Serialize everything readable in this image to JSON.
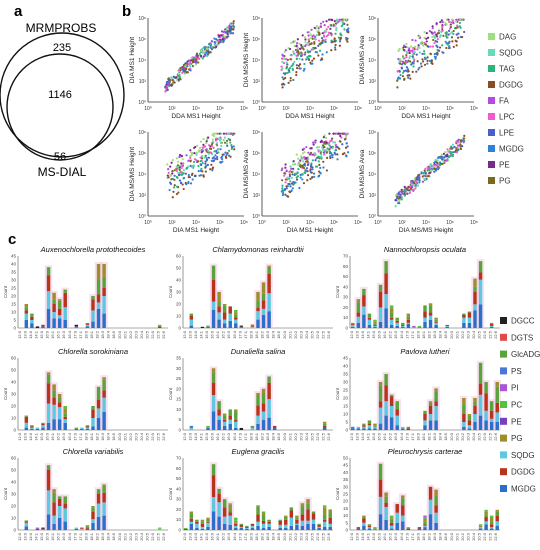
{
  "panel_labels": [
    "a",
    "b",
    "c"
  ],
  "venn": {
    "top_label": "MRMPROBS",
    "bottom_label": "MS-DIAL",
    "only_top": "235",
    "overlap": "1146",
    "only_bottom": "56"
  },
  "legend_b": [
    {
      "name": "DAG",
      "color": "#9ee07b"
    },
    {
      "name": "SQDG",
      "color": "#66d9b8"
    },
    {
      "name": "TAG",
      "color": "#2bb57a"
    },
    {
      "name": "DGDG",
      "color": "#8a4c24"
    },
    {
      "name": "FA",
      "color": "#b54adf"
    },
    {
      "name": "LPC",
      "color": "#f25bd0"
    },
    {
      "name": "LPE",
      "color": "#4b5fc9"
    },
    {
      "name": "MGDG",
      "color": "#2f80d8"
    },
    {
      "name": "PE",
      "color": "#7a2a8a"
    },
    {
      "name": "PG",
      "color": "#7a6a1c"
    }
  ],
  "legend_c": [
    {
      "name": "DGCC",
      "color": "#222222"
    },
    {
      "name": "DGTS",
      "color": "#e04a4a"
    },
    {
      "name": "GlcADG",
      "color": "#5aa33b"
    },
    {
      "name": "PS",
      "color": "#4a76d6"
    },
    {
      "name": "PI",
      "color": "#a855d6"
    },
    {
      "name": "PC",
      "color": "#58c23c"
    },
    {
      "name": "PE",
      "color": "#7a3cc0"
    },
    {
      "name": "PG",
      "color": "#9c8e2a"
    },
    {
      "name": "SQDG",
      "color": "#5ec8e0"
    },
    {
      "name": "DGDG",
      "color": "#b8331c"
    },
    {
      "name": "MGDG",
      "color": "#2a6fc9"
    }
  ],
  "chart_data": [
    {
      "type": "scatter",
      "panel": "b",
      "log_scale": true,
      "plots": [
        {
          "xlabel": "DDA MS1 Height",
          "ylabel": "DIA MS1 Height",
          "trend": "diag"
        },
        {
          "xlabel": "DDA MS1 Height",
          "ylabel": "DIA MS/MS Height",
          "trend": "bands"
        },
        {
          "xlabel": "DDA MS1 Height",
          "ylabel": "DIA MS/MS Area",
          "trend": "bands"
        },
        {
          "xlabel": "DIA MS1 Height",
          "ylabel": "DIA MS/MS Height",
          "trend": "bands"
        },
        {
          "xlabel": "DIA MS1 Height",
          "ylabel": "DIA MS/MS Area",
          "trend": "bands"
        },
        {
          "xlabel": "DIA MS/MS Height",
          "ylabel": "DIA MS/MS Area",
          "trend": "diag"
        }
      ]
    },
    {
      "type": "bar",
      "panel": "c",
      "stacked": true,
      "ylabel": "Count",
      "categories": [
        "12:0",
        "13:0",
        "14:0",
        "14:1",
        "15:0",
        "16:0",
        "16:1",
        "16:2",
        "16:3",
        "16:4",
        "17:0",
        "17:1",
        "18:0",
        "18:1",
        "18:2",
        "18:3",
        "18:4",
        "18:5",
        "20:0",
        "20:1",
        "20:2",
        "20:3",
        "20:4",
        "20:5",
        "22:0",
        "22:5",
        "22:6"
      ],
      "panels": [
        {
          "title": "Auxenochlorella protothecoides",
          "ylim": [
            0,
            45
          ],
          "yticks": [
            0,
            5,
            10,
            15,
            20,
            25,
            30,
            35,
            40,
            45
          ],
          "values": [
            0,
            15,
            9,
            1,
            2,
            38,
            22,
            18,
            24,
            0,
            2,
            0,
            3,
            20,
            40,
            40,
            0,
            0,
            0,
            0,
            0,
            0,
            0,
            0,
            0,
            2,
            0
          ]
        },
        {
          "title": "Chlamydomonas reinhardtii",
          "ylim": [
            0,
            60
          ],
          "yticks": [
            0,
            10,
            20,
            30,
            40,
            50,
            60
          ],
          "values": [
            0,
            12,
            0,
            1,
            2,
            52,
            30,
            20,
            18,
            15,
            2,
            0,
            3,
            30,
            38,
            52,
            0,
            0,
            0,
            0,
            0,
            0,
            0,
            0,
            0,
            0,
            0
          ]
        },
        {
          "title": "Nannochloropsis oculata",
          "ylim": [
            0,
            70
          ],
          "yticks": [
            0,
            10,
            20,
            30,
            40,
            50,
            60,
            70
          ],
          "values": [
            5,
            28,
            38,
            14,
            8,
            42,
            65,
            22,
            10,
            5,
            14,
            2,
            2,
            22,
            24,
            10,
            0,
            3,
            0,
            0,
            14,
            16,
            48,
            65,
            0,
            5,
            0
          ]
        },
        {
          "title": "Chlorella sorokiniana",
          "ylim": [
            0,
            60
          ],
          "yticks": [
            0,
            10,
            20,
            30,
            40,
            50,
            60
          ],
          "values": [
            0,
            12,
            4,
            2,
            6,
            48,
            38,
            30,
            20,
            0,
            2,
            2,
            4,
            20,
            36,
            44,
            0,
            0,
            0,
            0,
            0,
            0,
            0,
            0,
            0,
            0,
            0
          ]
        },
        {
          "title": "Dunaliella salina",
          "ylim": [
            0,
            35
          ],
          "yticks": [
            0,
            5,
            10,
            15,
            20,
            25,
            30,
            35
          ],
          "values": [
            0,
            2,
            0,
            0,
            2,
            30,
            14,
            8,
            10,
            10,
            1,
            0,
            2,
            18,
            20,
            26,
            2,
            0,
            0,
            0,
            0,
            0,
            0,
            0,
            0,
            4,
            0
          ]
        },
        {
          "title": "Pavlova lutheri",
          "ylim": [
            0,
            45
          ],
          "yticks": [
            0,
            5,
            10,
            15,
            20,
            25,
            30,
            35,
            40,
            45
          ],
          "values": [
            2,
            2,
            4,
            6,
            4,
            30,
            35,
            22,
            18,
            2,
            2,
            0,
            0,
            12,
            18,
            26,
            0,
            0,
            0,
            0,
            20,
            10,
            20,
            42,
            30,
            18,
            30
          ]
        },
        {
          "title": "Chlorella variabilis",
          "ylim": [
            0,
            60
          ],
          "yticks": [
            0,
            10,
            20,
            30,
            40,
            50,
            60
          ],
          "values": [
            0,
            8,
            0,
            2,
            2,
            54,
            34,
            28,
            28,
            0,
            2,
            2,
            4,
            20,
            34,
            38,
            0,
            0,
            0,
            0,
            0,
            0,
            0,
            0,
            0,
            2,
            0
          ]
        },
        {
          "title": "Euglena gracilis",
          "ylim": [
            0,
            70
          ],
          "yticks": [
            0,
            10,
            20,
            30,
            40,
            50,
            60,
            70
          ],
          "values": [
            2,
            18,
            10,
            10,
            12,
            64,
            40,
            30,
            26,
            12,
            6,
            4,
            6,
            24,
            18,
            10,
            0,
            10,
            14,
            22,
            14,
            26,
            30,
            18,
            6,
            24,
            20
          ]
        },
        {
          "title": "Pleurochrysis carterae",
          "ylim": [
            0,
            50
          ],
          "yticks": [
            0,
            5,
            10,
            15,
            20,
            25,
            30,
            35,
            40,
            45,
            50
          ],
          "values": [
            0,
            2,
            10,
            4,
            2,
            46,
            26,
            10,
            18,
            24,
            2,
            0,
            2,
            10,
            30,
            28,
            0,
            0,
            0,
            0,
            0,
            0,
            0,
            4,
            14,
            10,
            14
          ]
        }
      ]
    }
  ]
}
